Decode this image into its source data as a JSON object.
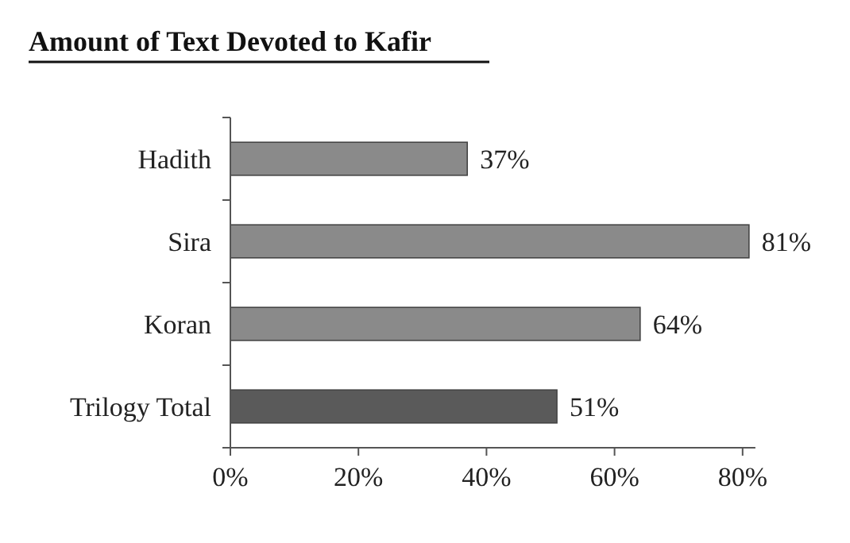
{
  "chart_data": {
    "type": "bar",
    "orientation": "horizontal",
    "title": "Amount of Text Devoted to Kafir",
    "categories": [
      "Hadith",
      "Sira",
      "Koran",
      "Trilogy Total"
    ],
    "values": [
      37,
      81,
      64,
      51
    ],
    "colors": [
      "#8a8a8a",
      "#8a8a8a",
      "#8a8a8a",
      "#5a5a5a"
    ],
    "value_labels": [
      "37%",
      "81%",
      "64%",
      "51%"
    ],
    "xlim": [
      0,
      82
    ],
    "xticks": [
      {
        "value": 0,
        "label": "0%"
      },
      {
        "value": 20,
        "label": "20%"
      },
      {
        "value": 40,
        "label": "40%"
      },
      {
        "value": 60,
        "label": "60%"
      },
      {
        "value": 80,
        "label": "80%"
      }
    ],
    "grid": false
  }
}
